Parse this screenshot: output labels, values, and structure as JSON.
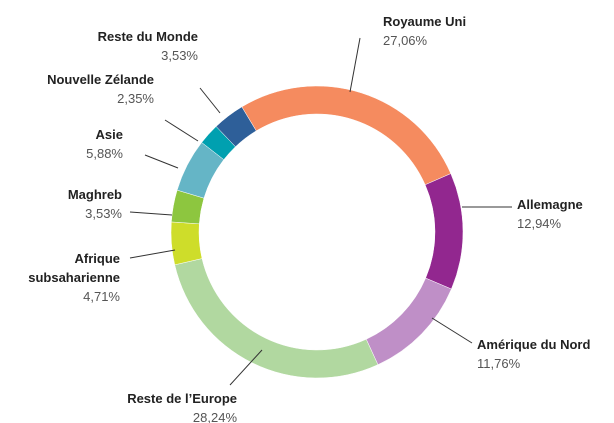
{
  "chart_data": {
    "type": "pie",
    "categories": [
      "Royaume Uni",
      "Allemagne",
      "Amérique du Nord",
      "Reste de l’Europe",
      "Afrique subsaharienne",
      "Maghreb",
      "Asie",
      "Nouvelle Zélande",
      "Reste du Monde"
    ],
    "values": [
      27.06,
      12.94,
      11.76,
      28.24,
      4.71,
      3.53,
      5.88,
      2.35,
      3.53
    ],
    "value_labels": [
      "27,06%",
      "12,94%",
      "11,76%",
      "28,24%",
      "4,71%",
      "3,53%",
      "5,88%",
      "2,35%",
      "3,53%"
    ],
    "colors": [
      "#f58b5f",
      "#92278f",
      "#bf8fc7",
      "#b1d8a0",
      "#cedd2a",
      "#8dc63f",
      "#65b5c6",
      "#00a0b0",
      "#2e5f99"
    ]
  }
}
